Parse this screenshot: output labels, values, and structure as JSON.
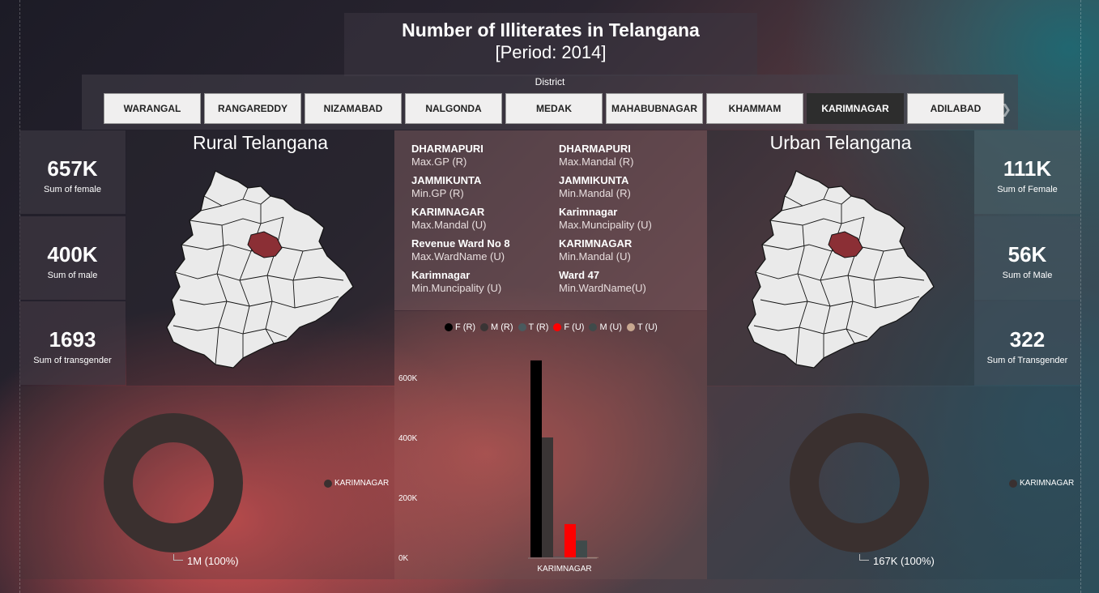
{
  "header": {
    "title": "Number of Illiterates in Telangana",
    "subtitle": "[Period: 2014]"
  },
  "slicer": {
    "label": "District",
    "items": [
      "WARANGAL",
      "RANGAREDDY",
      "NIZAMABAD",
      "NALGONDA",
      "MEDAK",
      "MAHABUBNAGAR",
      "KHAMMAM",
      "KARIMNAGAR",
      "ADILABAD"
    ],
    "selected": "KARIMNAGAR",
    "next_icon": "chevron-right-icon"
  },
  "rural": {
    "title": "Rural Telangana",
    "kpis": [
      {
        "value": "657K",
        "caption": "Sum of female"
      },
      {
        "value": "400K",
        "caption": "Sum of male"
      },
      {
        "value": "1693",
        "caption": "Sum of transgender"
      }
    ],
    "donut_legend": "KARIMNAGAR",
    "donut_label": "1M (100%)"
  },
  "urban": {
    "title": "Urban Telangana",
    "kpis": [
      {
        "value": "111K",
        "caption": "Sum of Female"
      },
      {
        "value": "56K",
        "caption": "Sum of Male"
      },
      {
        "value": "322",
        "caption": "Sum of Transgender"
      }
    ],
    "donut_legend": "KARIMNAGAR",
    "donut_label": "167K (100%)"
  },
  "info_cards": [
    {
      "name": "DHARMAPURI",
      "metric": "Max.GP (R)"
    },
    {
      "name": "DHARMAPURI",
      "metric": "Max.Mandal (R)"
    },
    {
      "name": "JAMMIKUNTA",
      "metric": "Min.GP (R)"
    },
    {
      "name": "JAMMIKUNTA",
      "metric": "Min.Mandal (R)"
    },
    {
      "name": "KARIMNAGAR",
      "metric": "Max.Mandal (U)"
    },
    {
      "name": "Karimnagar",
      "metric": "Max.Muncipality (U)"
    },
    {
      "name": "Revenue Ward No 8",
      "metric": "Max.WardName (U)"
    },
    {
      "name": "KARIMNAGAR",
      "metric": "Min.Mandal (U)"
    },
    {
      "name": "Karimnagar",
      "metric": "Min.Muncipality (U)"
    },
    {
      "name": "Ward 47",
      "metric": "Min.WardName(U)"
    }
  ],
  "colors": {
    "map_fill": "#eaeaea",
    "map_highlight": "#8b2f35",
    "donut": "#3a302f",
    "selected_button": "#2d2d2d"
  },
  "chart_data": {
    "type": "bar",
    "categories": [
      "KARIMNAGAR"
    ],
    "series": [
      {
        "name": "F (R)",
        "color": "#000000",
        "values": [
          657000
        ]
      },
      {
        "name": "M (R)",
        "color": "#3a3535",
        "values": [
          400000
        ]
      },
      {
        "name": "T (R)",
        "color": "#4a5a5e",
        "values": [
          1693
        ]
      },
      {
        "name": "F (U)",
        "color": "#ff0000",
        "values": [
          111000
        ]
      },
      {
        "name": "M (U)",
        "color": "#3f4a4a",
        "values": [
          56000
        ]
      },
      {
        "name": "T (U)",
        "color": "#c8a890",
        "values": [
          322
        ]
      }
    ],
    "yticks": [
      "0K",
      "200K",
      "400K",
      "600K"
    ],
    "ylim": [
      0,
      600000
    ],
    "legend_position": "top"
  }
}
